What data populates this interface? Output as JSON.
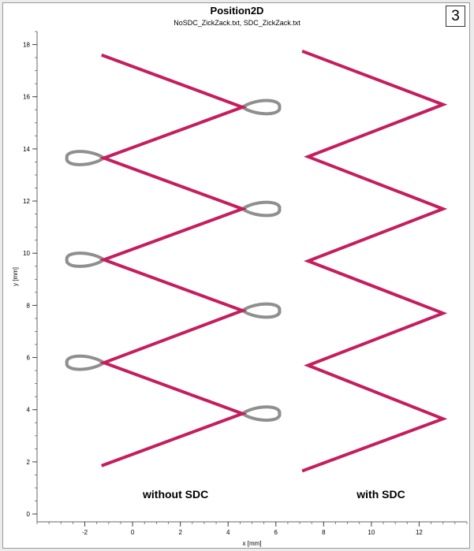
{
  "figure_number": "3",
  "chart_data": {
    "type": "line",
    "title": "Position2D",
    "subtitle": "NoSDC_ZickZack.txt, SDC_ZickZack.txt",
    "xlabel": "x [mm]",
    "ylabel": "y [mm]",
    "xlim": [
      -4,
      14
    ],
    "ylim": [
      -0.3,
      18.5
    ],
    "xticks": [
      -2,
      0,
      2,
      4,
      6,
      8,
      10,
      12
    ],
    "yticks": [
      0,
      2,
      4,
      6,
      8,
      10,
      12,
      14,
      16,
      18
    ],
    "grid": false,
    "colors": {
      "path": "#c41e5e",
      "loop": "#8f8f8f"
    },
    "series": [
      {
        "values": [
          [
            -1.3,
            1.85
          ],
          [
            4.6,
            3.85
          ],
          [
            -1.2,
            5.8
          ],
          [
            4.6,
            7.8
          ],
          [
            -1.2,
            9.75
          ],
          [
            4.6,
            11.7
          ],
          [
            -1.2,
            13.65
          ],
          [
            4.6,
            15.6
          ],
          [
            -1.3,
            17.6
          ]
        ]
      },
      {
        "values": [
          [
            7.1,
            1.65
          ],
          [
            13.0,
            3.65
          ],
          [
            7.35,
            5.7
          ],
          [
            13.0,
            7.7
          ],
          [
            7.35,
            9.7
          ],
          [
            13.0,
            11.7
          ],
          [
            7.35,
            13.7
          ],
          [
            13.0,
            15.7
          ],
          [
            7.1,
            17.75
          ]
        ]
      }
    ],
    "loops": [
      {
        "x": 4.6,
        "y": 3.85,
        "side": "right"
      },
      {
        "x": -1.2,
        "y": 5.8,
        "side": "left"
      },
      {
        "x": 4.6,
        "y": 7.8,
        "side": "right"
      },
      {
        "x": -1.2,
        "y": 9.75,
        "side": "left"
      },
      {
        "x": 4.6,
        "y": 11.7,
        "side": "right"
      },
      {
        "x": -1.2,
        "y": 13.65,
        "side": "left"
      },
      {
        "x": 4.6,
        "y": 15.6,
        "side": "right"
      }
    ],
    "annotations": [
      {
        "text": "without SDC",
        "x": 1.8,
        "y": 0.6
      },
      {
        "text": "with SDC",
        "x": 10.4,
        "y": 0.6
      }
    ]
  }
}
